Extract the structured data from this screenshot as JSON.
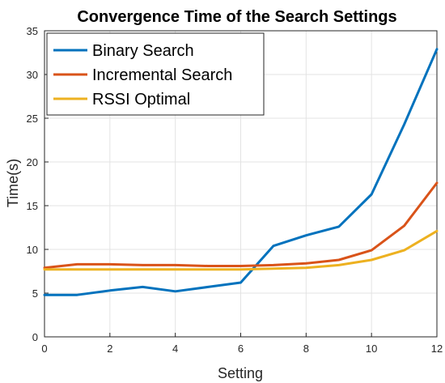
{
  "chart_data": {
    "type": "line",
    "title": "Convergence Time of the Search Settings",
    "xlabel": "Setting",
    "ylabel": "Time(s)",
    "xlim": [
      0,
      12
    ],
    "ylim": [
      0,
      35
    ],
    "xticks": [
      0,
      2,
      4,
      6,
      8,
      10,
      12
    ],
    "yticks": [
      0,
      5,
      10,
      15,
      20,
      25,
      30,
      35
    ],
    "grid": true,
    "legend_location": "top-left",
    "x": [
      0,
      1,
      2,
      3,
      4,
      5,
      6,
      7,
      8,
      9,
      10,
      11,
      12
    ],
    "series": [
      {
        "name": "Binary Search",
        "color": "#0072BD",
        "values": [
          4.8,
          4.8,
          5.3,
          5.7,
          5.2,
          5.7,
          6.2,
          10.4,
          11.6,
          12.6,
          16.3,
          24.3,
          32.9
        ]
      },
      {
        "name": "Incremental Search",
        "color": "#D95319",
        "values": [
          7.9,
          8.3,
          8.3,
          8.2,
          8.2,
          8.1,
          8.1,
          8.2,
          8.4,
          8.8,
          9.9,
          12.7,
          17.6
        ]
      },
      {
        "name": "RSSI Optimal",
        "color": "#EDB120",
        "values": [
          7.7,
          7.7,
          7.7,
          7.7,
          7.7,
          7.7,
          7.7,
          7.8,
          7.9,
          8.2,
          8.8,
          9.9,
          12.1
        ]
      }
    ]
  }
}
